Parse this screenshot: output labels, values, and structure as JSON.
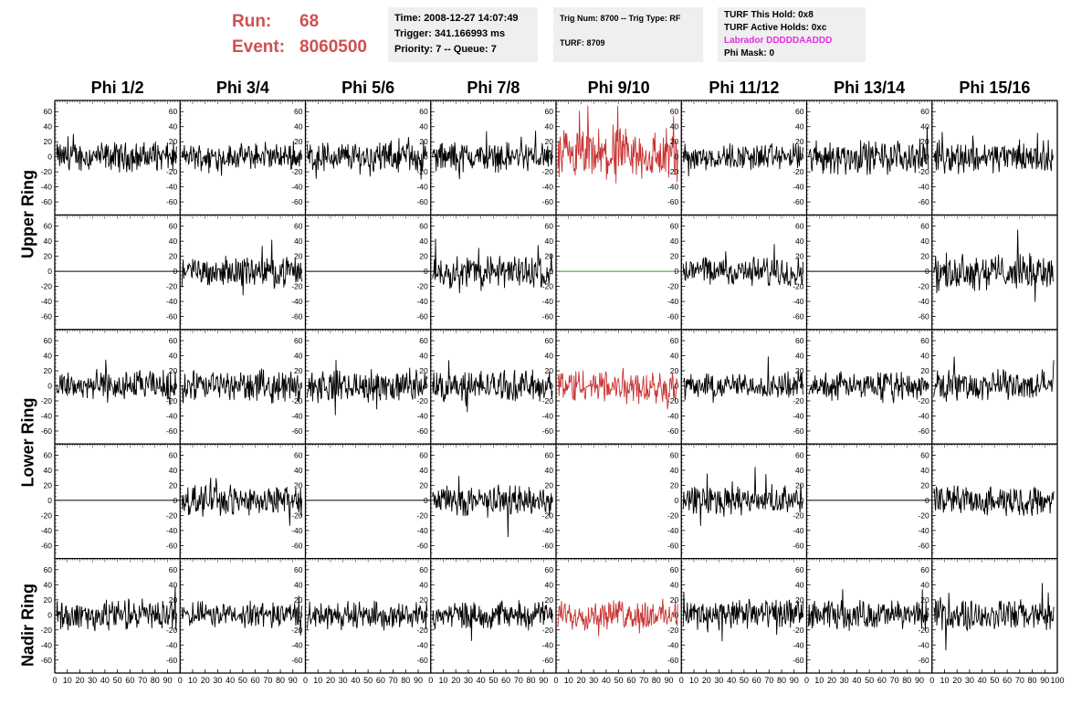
{
  "header": {
    "run_label": "Run:",
    "run_value": "68",
    "event_label": "Event:",
    "event_value": "8060500",
    "time": "Time: 2008-12-27 14:07:49",
    "trigger": "Trigger: 341.166993 ms",
    "priority": "Priority: 7 -- Queue: 7",
    "trig_num": "Trig Num: 8700 -- Trig Type: RF",
    "turf": "TURF: 8709",
    "turf_this_hold": "TURF This Hold: 0x8",
    "turf_active_holds": "TURF Active Holds: 0xc",
    "labrador": "Labrador DDDDDAADDD",
    "phi_mask": "Phi Mask: 0"
  },
  "columns": [
    "Phi 1/2",
    "Phi 3/4",
    "Phi 5/6",
    "Phi 7/8",
    "Phi 9/10",
    "Phi 11/12",
    "Phi 13/14",
    "Phi 15/16"
  ],
  "ring_labels": {
    "upper": "Upper Ring",
    "lower": "Lower Ring",
    "nadir": "Nadir Ring"
  },
  "colors": {
    "run_text": "#d05050",
    "labrador": "#e030e0",
    "trace_default": "#000000",
    "trace_triggered": "#c83232",
    "trace_flat_highlight": "#2a9a2a"
  },
  "chart_data": {
    "type": "line",
    "layout": "grid 5 rows x 8 columns of waveform panels",
    "x_ticks": [
      0,
      10,
      20,
      30,
      40,
      50,
      60,
      70,
      80,
      90,
      100
    ],
    "x_tick_labels_text": "0 10 20 30 40 50 60 70 80 90100",
    "xlim": [
      0,
      100
    ],
    "ylim": [
      -70,
      70
    ],
    "y_ticks": [
      -60,
      -40,
      -20,
      0,
      20,
      40,
      60
    ],
    "rows": [
      {
        "ring": "Upper Ring",
        "panels": [
          {
            "style": "noise",
            "amp": 15,
            "color": "trace_default"
          },
          {
            "style": "noise",
            "amp": 13,
            "color": "trace_default"
          },
          {
            "style": "noise",
            "amp": 16,
            "color": "trace_default"
          },
          {
            "style": "noise",
            "amp": 15,
            "color": "trace_default"
          },
          {
            "style": "noise",
            "amp": 28,
            "color": "trace_triggered"
          },
          {
            "style": "noise",
            "amp": 14,
            "color": "trace_default"
          },
          {
            "style": "noise",
            "amp": 17,
            "color": "trace_default"
          },
          {
            "style": "noise",
            "amp": 16,
            "color": "trace_default"
          }
        ]
      },
      {
        "ring": "Upper Ring",
        "panels": [
          {
            "style": "flat",
            "color": "trace_default"
          },
          {
            "style": "noise",
            "amp": 15,
            "color": "trace_default"
          },
          {
            "style": "flat",
            "color": "trace_default"
          },
          {
            "style": "noise",
            "amp": 17,
            "color": "trace_default"
          },
          {
            "style": "flat",
            "color": "trace_flat_highlight"
          },
          {
            "style": "noise",
            "amp": 15,
            "color": "trace_default"
          },
          {
            "style": "flat",
            "color": "trace_default"
          },
          {
            "style": "noise",
            "amp": 18,
            "color": "trace_default"
          }
        ]
      },
      {
        "ring": "Lower Ring",
        "panels": [
          {
            "style": "noise",
            "amp": 16,
            "color": "trace_default"
          },
          {
            "style": "noise",
            "amp": 16,
            "color": "trace_default"
          },
          {
            "style": "noise",
            "amp": 16,
            "color": "trace_default"
          },
          {
            "style": "noise",
            "amp": 16,
            "color": "trace_default"
          },
          {
            "style": "noise",
            "amp": 18,
            "color": "trace_triggered"
          },
          {
            "style": "noise",
            "amp": 13,
            "color": "trace_default"
          },
          {
            "style": "noise",
            "amp": 14,
            "color": "trace_default"
          },
          {
            "style": "noise",
            "amp": 16,
            "color": "trace_default"
          }
        ]
      },
      {
        "ring": "Lower Ring",
        "panels": [
          {
            "style": "flat",
            "color": "trace_default"
          },
          {
            "style": "noise",
            "amp": 15,
            "color": "trace_default"
          },
          {
            "style": "flat",
            "color": "trace_default"
          },
          {
            "style": "noise",
            "amp": 16,
            "color": "trace_default"
          },
          {
            "style": "empty"
          },
          {
            "style": "noise",
            "amp": 15,
            "color": "trace_default"
          },
          {
            "style": "flat",
            "color": "trace_default"
          },
          {
            "style": "noise",
            "amp": 15,
            "color": "trace_default"
          }
        ]
      },
      {
        "ring": "Nadir Ring",
        "panels": [
          {
            "style": "noise",
            "amp": 16,
            "color": "trace_default"
          },
          {
            "style": "noise",
            "amp": 13,
            "color": "trace_default"
          },
          {
            "style": "noise",
            "amp": 14,
            "color": "trace_default"
          },
          {
            "style": "noise",
            "amp": 14,
            "color": "trace_default"
          },
          {
            "style": "noise",
            "amp": 15,
            "color": "trace_triggered"
          },
          {
            "style": "noise",
            "amp": 16,
            "color": "trace_default"
          },
          {
            "style": "noise",
            "amp": 15,
            "color": "trace_default"
          },
          {
            "style": "noise",
            "amp": 16,
            "color": "trace_default"
          }
        ]
      }
    ]
  }
}
